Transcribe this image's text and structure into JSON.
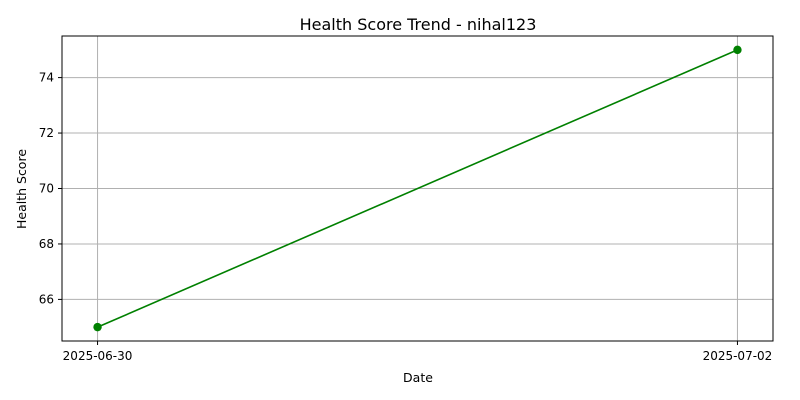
{
  "chart_data": {
    "type": "line",
    "title": "Health Score Trend - nihal123",
    "xlabel": "Date",
    "ylabel": "Health Score",
    "x": [
      "2025-06-30",
      "2025-07-02"
    ],
    "series": [
      {
        "values": [
          65,
          75
        ],
        "color": "#008000",
        "marker": "circle"
      }
    ],
    "xticks": [
      "2025-06-30",
      "2025-07-02"
    ],
    "yticks": [
      66,
      68,
      70,
      72,
      74
    ],
    "ylim": [
      64.5,
      75.5
    ],
    "grid": true
  }
}
